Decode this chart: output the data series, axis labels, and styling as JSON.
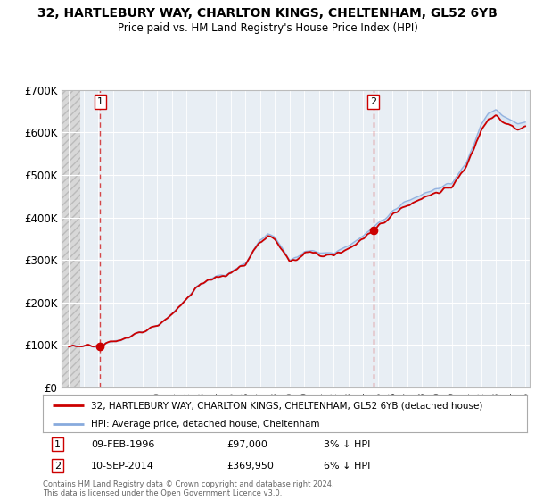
{
  "title": "32, HARTLEBURY WAY, CHARLTON KINGS, CHELTENHAM, GL52 6YB",
  "subtitle": "Price paid vs. HM Land Registry's House Price Index (HPI)",
  "ylim": [
    0,
    700000
  ],
  "yticks": [
    0,
    100000,
    200000,
    300000,
    400000,
    500000,
    600000,
    700000
  ],
  "ytick_labels": [
    "£0",
    "£100K",
    "£200K",
    "£300K",
    "£400K",
    "£500K",
    "£600K",
    "£700K"
  ],
  "sale1_year": 1996.12,
  "sale1_price": 97000,
  "sale2_year": 2014.69,
  "sale2_price": 369950,
  "property_color": "#cc0000",
  "hpi_color": "#88aadd",
  "plot_bg": "#e8eef4",
  "hatch_color": "#c8c8c8",
  "legend_property": "32, HARTLEBURY WAY, CHARLTON KINGS, CHELTENHAM, GL52 6YB (detached house)",
  "legend_hpi": "HPI: Average price, detached house, Cheltenham",
  "sale1_date_str": "09-FEB-1996",
  "sale1_price_str": "£97,000",
  "sale1_hpi_str": "3% ↓ HPI",
  "sale2_date_str": "10-SEP-2014",
  "sale2_price_str": "£369,950",
  "sale2_hpi_str": "6% ↓ HPI",
  "copyright": "Contains HM Land Registry data © Crown copyright and database right 2024.\nThis data is licensed under the Open Government Licence v3.0."
}
